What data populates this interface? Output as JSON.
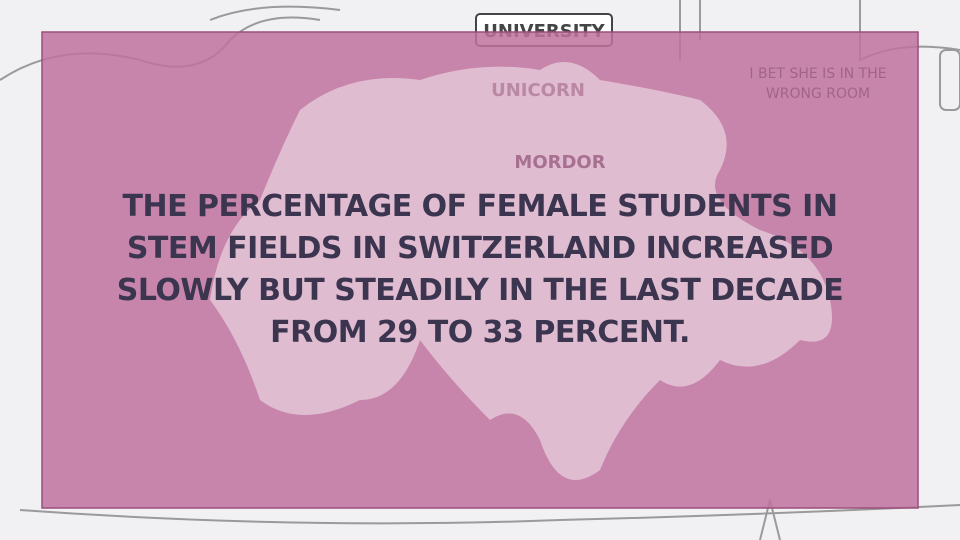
{
  "signs": {
    "university": "UNIVERSITY",
    "unicorn": "UNICORN",
    "mordor": "MORDOR"
  },
  "speech_bubble": [
    "I BET SHE IS IN THE",
    "WRONG ROOM"
  ],
  "message": {
    "lines": [
      "THE PERCENTAGE OF FEMALE STUDENTS IN",
      "STEM FIELDS IN SWITZERLAND INCREASED",
      "SLOWLY BUT STEADILY IN THE LAST DECADE",
      "FROM 29 TO 33 PERCENT."
    ]
  }
}
